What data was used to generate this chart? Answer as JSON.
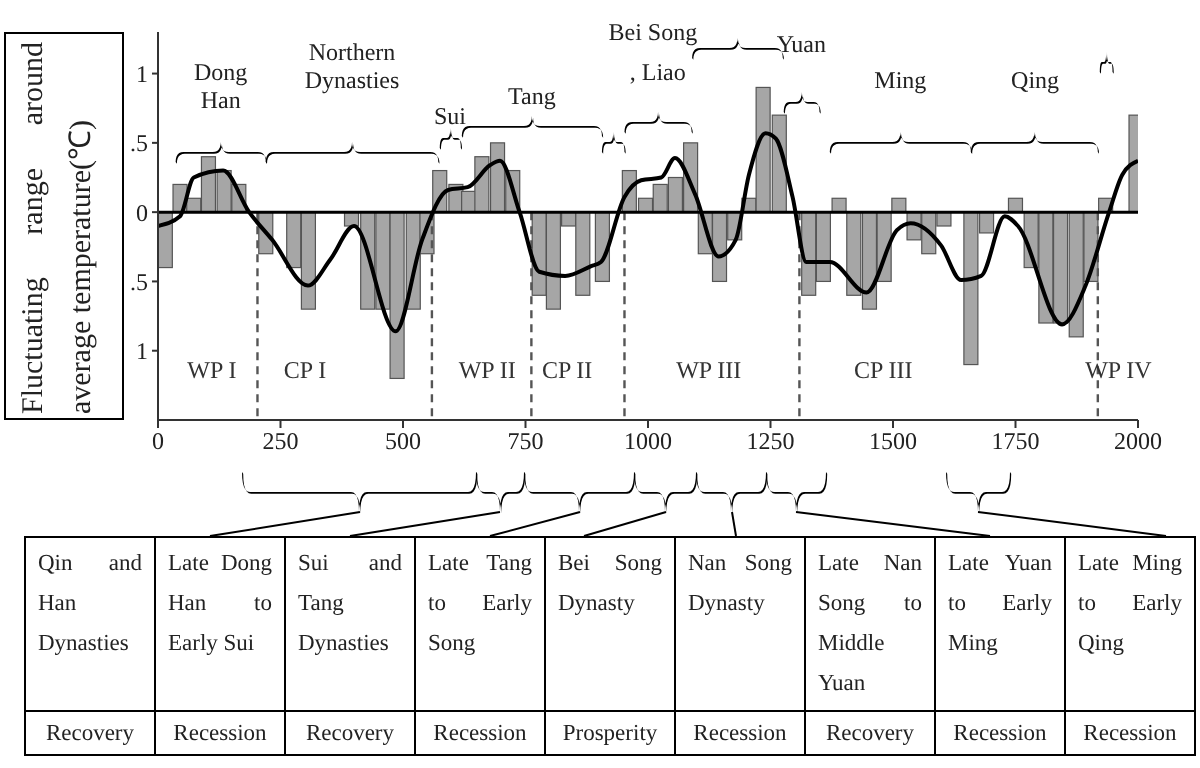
{
  "chart_data": {
    "type": "bar",
    "ylabel": "Fluctuating range around average temperature(℃)",
    "xlim": [
      0,
      2000
    ],
    "xticks": [
      0,
      250,
      500,
      750,
      1000,
      1250,
      1500,
      1750,
      2000
    ],
    "ylim": [
      -1.5,
      1.3
    ],
    "yticks": [
      {
        "value": -1,
        "label": "1"
      },
      {
        "value": -0.5,
        "label": ".5"
      },
      0,
      {
        "value": 0.5,
        "label": ".5"
      },
      1
    ],
    "grid": false,
    "legend": false,
    "series": [
      {
        "color": "#a6a6a6",
        "x": [
          15,
          45,
          73,
          103,
          135,
          165,
          220,
          277,
          307,
          395,
          428,
          459,
          488,
          521,
          549,
          575,
          608,
          634,
          661,
          693,
          724,
          778,
          807,
          838,
          867,
          907,
          962,
          995,
          1025,
          1056,
          1087,
          1117,
          1146,
          1177,
          1206,
          1235,
          1268,
          1328,
          1358,
          1390,
          1420,
          1452,
          1482,
          1512,
          1543,
          1573,
          1604,
          1659,
          1691,
          1750,
          1782,
          1812,
          1842,
          1874,
          1904,
          1934,
          1996
        ],
        "values": [
          -0.4,
          0.2,
          0.1,
          0.4,
          0.3,
          0.2,
          -0.3,
          -0.4,
          -0.7,
          -0.1,
          -0.7,
          -0.7,
          -1.2,
          -0.7,
          -0.3,
          0.3,
          0.2,
          0.15,
          0.4,
          0.5,
          0.3,
          -0.6,
          -0.7,
          -0.1,
          -0.6,
          -0.5,
          0.3,
          0.1,
          0.2,
          0.25,
          0.5,
          -0.3,
          -0.5,
          -0.2,
          0.1,
          0.9,
          0.7,
          -0.6,
          -0.5,
          0.1,
          -0.6,
          -0.7,
          -0.5,
          0.1,
          -0.2,
          -0.3,
          -0.1,
          -1.1,
          -0.15,
          0.1,
          -0.4,
          -0.8,
          -0.8,
          -0.9,
          -0.5,
          0.1,
          0.7
        ]
      },
      {
        "type": "line",
        "color": "#000000",
        "x": [
          0,
          45,
          73,
          133,
          186,
          233,
          306,
          352,
          400,
          485,
          539,
          592,
          632,
          678,
          698,
          738,
          778,
          831,
          884,
          904,
          952,
          986,
          1027,
          1055,
          1096,
          1144,
          1179,
          1206,
          1240,
          1261,
          1295,
          1323,
          1371,
          1446,
          1508,
          1536,
          1598,
          1639,
          1680,
          1728,
          1755,
          1845,
          1893,
          1941,
          1968,
          2000
        ],
        "values": [
          -0.1,
          -0.03,
          0.25,
          0.3,
          0,
          -0.2,
          -0.53,
          -0.34,
          -0.1,
          -0.86,
          -0.2,
          0.16,
          0.18,
          0.34,
          0.37,
          0,
          -0.43,
          -0.46,
          -0.39,
          -0.36,
          0.11,
          0.23,
          0.25,
          0.39,
          0.13,
          -0.32,
          -0.2,
          0.27,
          0.57,
          0.53,
          0.11,
          -0.36,
          -0.36,
          -0.58,
          -0.13,
          -0.08,
          -0.24,
          -0.49,
          -0.46,
          -0.03,
          -0.1,
          -0.81,
          -0.53,
          0,
          0.27,
          0.37
        ]
      }
    ],
    "ref_lines": [
      {
        "axis": "y",
        "value": 0,
        "color": "#000000",
        "line_style": "solid"
      },
      {
        "axis": "x",
        "value": 203,
        "color": "#555555",
        "line_style": "dashed"
      },
      {
        "axis": "x",
        "value": 559,
        "color": "#555555",
        "line_style": "dashed"
      },
      {
        "axis": "x",
        "value": 762,
        "color": "#555555",
        "line_style": "dashed"
      },
      {
        "axis": "x",
        "value": 952,
        "color": "#555555",
        "line_style": "dashed"
      },
      {
        "axis": "x",
        "value": 1309,
        "color": "#555555",
        "line_style": "dashed"
      },
      {
        "axis": "x",
        "value": 1918,
        "color": "#555555",
        "line_style": "dashed"
      }
    ],
    "annotations": [
      "WP I",
      "CP I",
      "WP II",
      "CP II",
      "WP III",
      "CP III",
      "WP IV",
      "Dong Han",
      "Northern Dynasties",
      "Sui",
      "Tang",
      "Bei Song",
      ", Liao",
      "Yuan",
      "Ming",
      "Qing",
      "Qin and Han Dynasties",
      "Recovery",
      "Late Dong Han to Early Sui",
      "Recession",
      "Sui and Tang Dynasties",
      "Recovery",
      "Late Tang to Early Song",
      "Recession",
      "Bei Song Dynasty",
      "Prosperity",
      "Nan Song Dynasty",
      "Recession",
      "Late Nan Song to Middle Yuan",
      "Recovery",
      "Late Yuan to Early Ming",
      "Recession",
      "Late Ming to Early Qing",
      "Recession"
    ]
  }
}
